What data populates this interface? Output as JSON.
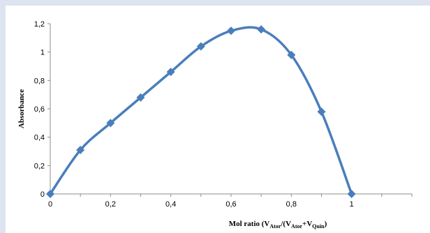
{
  "chart_data": {
    "type": "line",
    "xlabel_parts": [
      "Mol ratio (V",
      "Ator",
      "/(V",
      "Ator",
      "+V",
      "Quin",
      ")"
    ],
    "ylabel": "Absorbance",
    "x": [
      0,
      0.1,
      0.2,
      0.3,
      0.4,
      0.5,
      0.6,
      0.7,
      0.8,
      0.9,
      1
    ],
    "series": [
      {
        "values": [
          0,
          0.31,
          0.5,
          0.68,
          0.86,
          1.04,
          1.15,
          1.16,
          0.98,
          0.58,
          0
        ]
      }
    ],
    "xlim": [
      0,
      1.2
    ],
    "ylim": [
      0,
      1.2
    ],
    "x_ticks": [
      "0",
      "0,2",
      "0,4",
      "0,6",
      "0,8",
      "1"
    ],
    "x_tick_values": [
      0,
      0.2,
      0.4,
      0.6,
      0.8,
      1
    ],
    "y_ticks": [
      "0",
      "0,2",
      "0,4",
      "0,6",
      "0,8",
      "1",
      "1,2"
    ],
    "y_tick_values": [
      0,
      0.2,
      0.4,
      0.6,
      0.8,
      1,
      1.2
    ],
    "grid": false,
    "legend": "none",
    "line_color": "#4a7ebb",
    "marker": "diamond"
  }
}
